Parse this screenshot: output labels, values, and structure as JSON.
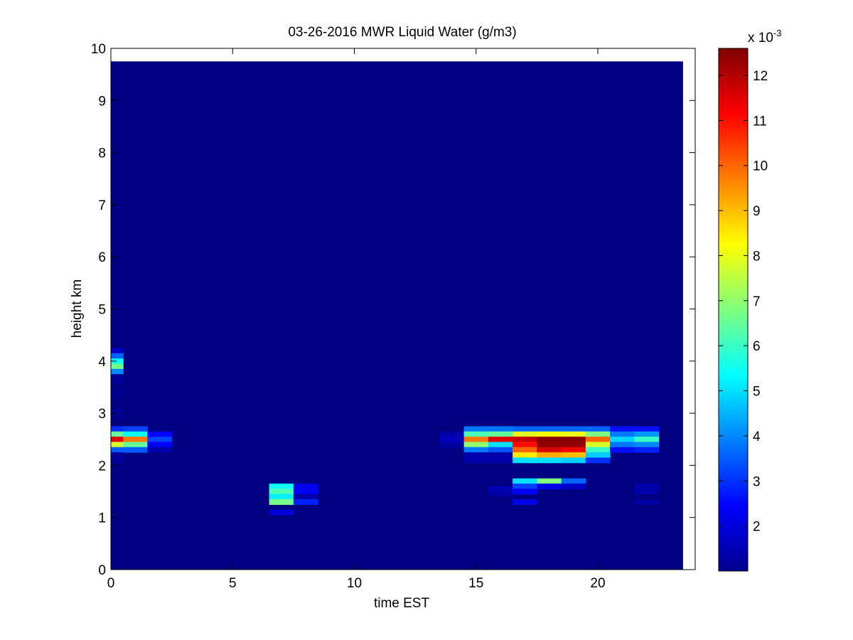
{
  "chart_data": {
    "type": "heatmap",
    "title": "03-26-2016 MWR Liquid Water (g/m3)",
    "xlabel": "time EST",
    "ylabel": "height km",
    "xlim": [
      0,
      24
    ],
    "ylim": [
      0,
      10
    ],
    "x_ticks": [
      "0",
      "5",
      "10",
      "15",
      "20"
    ],
    "y_ticks": [
      "0",
      "1",
      "2",
      "3",
      "4",
      "5",
      "6",
      "7",
      "8",
      "9",
      "10"
    ],
    "colorbar": {
      "multiplier_base": "x 10",
      "multiplier_exp": "-3",
      "range": [
        1.0,
        12.6
      ],
      "ticks": [
        "2",
        "3",
        "4",
        "5",
        "6",
        "7",
        "8",
        "9",
        "10",
        "11",
        "12"
      ],
      "colormap": "jet"
    },
    "data_extent": {
      "x": [
        0,
        23.5
      ],
      "y": [
        0,
        9.75
      ]
    },
    "background_value": 1.0,
    "cells": [
      [
        0,
        4.15,
        4.25,
        1.8
      ],
      [
        0,
        4.05,
        4.15,
        3.6
      ],
      [
        0,
        3.95,
        4.05,
        5.4
      ],
      [
        0,
        3.85,
        3.95,
        6.6
      ],
      [
        0,
        3.75,
        3.85,
        4.0
      ],
      [
        0,
        3.55,
        3.75,
        1.3
      ],
      [
        0,
        3.3,
        3.5,
        1.2
      ],
      [
        0,
        2.9,
        3.1,
        1.2
      ],
      [
        0,
        2.65,
        2.75,
        3.0
      ],
      [
        0,
        2.55,
        2.65,
        6.5
      ],
      [
        0,
        2.45,
        2.55,
        11.5
      ],
      [
        0,
        2.35,
        2.45,
        7.8
      ],
      [
        0,
        2.25,
        2.35,
        3.5
      ],
      [
        0,
        2.05,
        2.25,
        1.3
      ],
      [
        1,
        2.65,
        2.75,
        3.2
      ],
      [
        1,
        2.55,
        2.65,
        5.5
      ],
      [
        1,
        2.45,
        2.55,
        9.8
      ],
      [
        1,
        2.35,
        2.45,
        6.5
      ],
      [
        1,
        2.25,
        2.35,
        3.5
      ],
      [
        2,
        2.55,
        2.65,
        2.4
      ],
      [
        2,
        2.45,
        2.55,
        3.2
      ],
      [
        2,
        2.35,
        2.45,
        2.4
      ],
      [
        2,
        2.25,
        2.35,
        1.5
      ],
      [
        7,
        1.55,
        1.65,
        5.5
      ],
      [
        7,
        1.45,
        1.55,
        6.2
      ],
      [
        7,
        1.35,
        1.45,
        5.2
      ],
      [
        7,
        1.25,
        1.35,
        6.7
      ],
      [
        7,
        1.05,
        1.15,
        2.0
      ],
      [
        8,
        1.55,
        1.65,
        2.2
      ],
      [
        8,
        1.45,
        1.55,
        2.4
      ],
      [
        8,
        1.35,
        1.45,
        1.5
      ],
      [
        8,
        1.25,
        1.35,
        2.8
      ],
      [
        14,
        2.55,
        2.65,
        1.5
      ],
      [
        14,
        2.45,
        2.55,
        1.7
      ],
      [
        14,
        2.35,
        2.45,
        1.4
      ],
      [
        15,
        2.65,
        2.75,
        3.8
      ],
      [
        15,
        2.55,
        2.65,
        6.2
      ],
      [
        15,
        2.45,
        2.55,
        9.8
      ],
      [
        15,
        2.35,
        2.45,
        7.0
      ],
      [
        15,
        2.25,
        2.35,
        3.8
      ],
      [
        15,
        2.05,
        2.25,
        1.5
      ],
      [
        16,
        2.65,
        2.75,
        3.8
      ],
      [
        16,
        2.55,
        2.65,
        6.5
      ],
      [
        16,
        2.45,
        2.55,
        11.5
      ],
      [
        16,
        2.35,
        2.45,
        5.0
      ],
      [
        16,
        2.25,
        2.35,
        3.4
      ],
      [
        16,
        2.05,
        2.25,
        1.5
      ],
      [
        16,
        1.5,
        1.6,
        1.6
      ],
      [
        16,
        1.4,
        1.5,
        1.4
      ],
      [
        17,
        2.65,
        2.75,
        3.6
      ],
      [
        17,
        2.55,
        2.65,
        7.9
      ],
      [
        17,
        2.45,
        2.55,
        11.8
      ],
      [
        17,
        2.35,
        2.45,
        11.0
      ],
      [
        17,
        2.25,
        2.35,
        10.0
      ],
      [
        17,
        2.15,
        2.25,
        8.5
      ],
      [
        17,
        2.05,
        2.15,
        5.0
      ],
      [
        17,
        1.65,
        1.75,
        5.0
      ],
      [
        17,
        1.55,
        1.65,
        3.2
      ],
      [
        17,
        1.45,
        1.55,
        2.4
      ],
      [
        17,
        1.25,
        1.35,
        2.2
      ],
      [
        18,
        2.65,
        2.75,
        3.6
      ],
      [
        18,
        2.55,
        2.65,
        8.2
      ],
      [
        18,
        2.45,
        2.55,
        12.5
      ],
      [
        18,
        2.35,
        2.45,
        12.4
      ],
      [
        18,
        2.25,
        2.35,
        11.6
      ],
      [
        18,
        2.15,
        2.25,
        9.2
      ],
      [
        18,
        2.05,
        2.15,
        5.0
      ],
      [
        18,
        1.65,
        1.75,
        6.8
      ],
      [
        18,
        1.55,
        1.65,
        2.2
      ],
      [
        19,
        2.65,
        2.75,
        3.6
      ],
      [
        19,
        2.55,
        2.65,
        8.0
      ],
      [
        19,
        2.45,
        2.55,
        12.5
      ],
      [
        19,
        2.35,
        2.45,
        12.4
      ],
      [
        19,
        2.25,
        2.35,
        11.3
      ],
      [
        19,
        2.15,
        2.25,
        9.0
      ],
      [
        19,
        2.05,
        2.15,
        4.8
      ],
      [
        19,
        1.65,
        1.75,
        3.6
      ],
      [
        19,
        1.55,
        1.65,
        1.8
      ],
      [
        20,
        2.65,
        2.75,
        3.6
      ],
      [
        20,
        2.55,
        2.65,
        6.8
      ],
      [
        20,
        2.45,
        2.55,
        10.0
      ],
      [
        20,
        2.35,
        2.45,
        7.8
      ],
      [
        20,
        2.25,
        2.35,
        6.0
      ],
      [
        20,
        2.15,
        2.25,
        4.8
      ],
      [
        20,
        2.05,
        2.15,
        3.0
      ],
      [
        21,
        2.65,
        2.75,
        2.6
      ],
      [
        21,
        2.55,
        2.65,
        3.8
      ],
      [
        21,
        2.45,
        2.55,
        4.9
      ],
      [
        21,
        2.35,
        2.45,
        3.8
      ],
      [
        21,
        2.25,
        2.35,
        2.6
      ],
      [
        22,
        2.65,
        2.75,
        2.6
      ],
      [
        22,
        2.55,
        2.65,
        4.2
      ],
      [
        22,
        2.45,
        2.55,
        6.0
      ],
      [
        22,
        2.35,
        2.45,
        4.0
      ],
      [
        22,
        2.25,
        2.35,
        2.8
      ],
      [
        22,
        1.45,
        1.65,
        1.5
      ],
      [
        22,
        1.25,
        1.35,
        1.4
      ]
    ]
  }
}
